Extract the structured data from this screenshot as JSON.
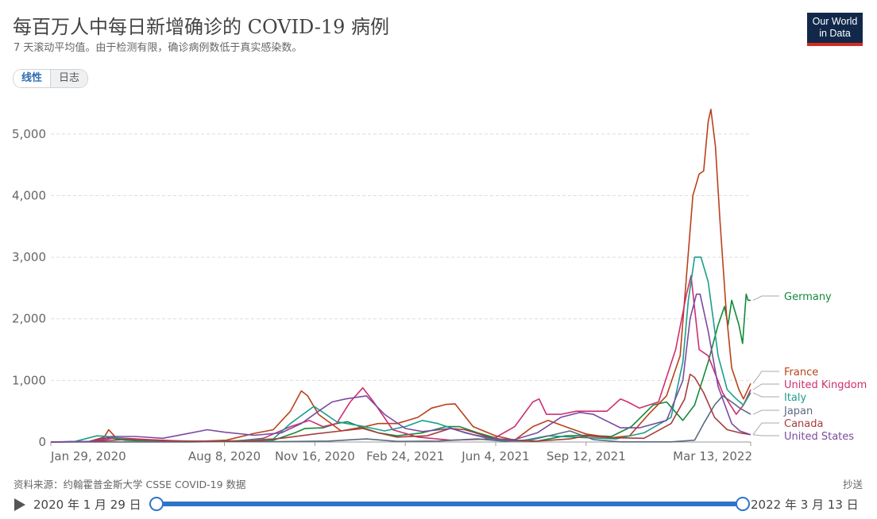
{
  "header": {
    "title": "每百万人中每日新增确诊的 COVID-19 病例",
    "subtitle": "7 天滚动平均值。由于检测有限，确诊病例数低于真实感染数。"
  },
  "logo": {
    "line1": "Our World",
    "line2": "in Data"
  },
  "scale_toggle": {
    "linear_label": "线性",
    "log_label": "日志",
    "active": "linear"
  },
  "footer": {
    "source": "资料来源：约翰霍普金斯大学 CSSE COVID-19 数据",
    "share_label": "抄送"
  },
  "timeline": {
    "start_label": "2020 年 1 月 29 日",
    "end_label": "2022 年 3 月 13 日"
  },
  "chart_data": {
    "type": "line",
    "title": "每百万人中每日新增确诊的 COVID-19 病例",
    "xlabel": "",
    "ylabel": "",
    "x_range": [
      "2020-01-29",
      "2022-03-13"
    ],
    "ylim": [
      0,
      5500
    ],
    "yticks": [
      0,
      1000,
      2000,
      3000,
      4000,
      5000
    ],
    "ytick_labels": [
      "0",
      "1,000",
      "2,000",
      "3,000",
      "4,000",
      "5,000"
    ],
    "xticks": [
      "2020-01-29",
      "2020-08-08",
      "2020-11-16",
      "2021-02-24",
      "2021-06-04",
      "2021-09-12",
      "2022-03-13"
    ],
    "xtick_labels": [
      "Jan 29, 2020",
      "Aug 8, 2020",
      "Nov 16, 2020",
      "Feb 24, 2021",
      "Jun 4, 2021",
      "Sep 12, 2021",
      "Mar 13, 2022"
    ],
    "grid": "horizontal dashed",
    "legend": "right, labels at line ends",
    "series": [
      {
        "name": "Germany",
        "color": "#138a3a",
        "points": [
          [
            "2020-01-29",
            0
          ],
          [
            "2020-03-10",
            5
          ],
          [
            "2020-04-01",
            70
          ],
          [
            "2020-04-20",
            30
          ],
          [
            "2020-06-01",
            5
          ],
          [
            "2020-08-15",
            15
          ],
          [
            "2020-10-01",
            30
          ],
          [
            "2020-10-25",
            150
          ],
          [
            "2020-11-05",
            220
          ],
          [
            "2020-11-25",
            230
          ],
          [
            "2020-12-10",
            300
          ],
          [
            "2020-12-22",
            330
          ],
          [
            "2021-01-05",
            250
          ],
          [
            "2021-01-25",
            150
          ],
          [
            "2021-02-15",
            100
          ],
          [
            "2021-03-15",
            150
          ],
          [
            "2021-04-10",
            250
          ],
          [
            "2021-04-25",
            250
          ],
          [
            "2021-05-15",
            150
          ],
          [
            "2021-06-15",
            20
          ],
          [
            "2021-07-20",
            15
          ],
          [
            "2021-08-20",
            100
          ],
          [
            "2021-09-10",
            110
          ],
          [
            "2021-10-10",
            90
          ],
          [
            "2021-11-01",
            250
          ],
          [
            "2021-11-25",
            600
          ],
          [
            "2021-12-10",
            650
          ],
          [
            "2021-12-28",
            350
          ],
          [
            "2022-01-10",
            600
          ],
          [
            "2022-01-25",
            1300
          ],
          [
            "2022-02-05",
            1900
          ],
          [
            "2022-02-12",
            2200
          ],
          [
            "2022-02-16",
            1900
          ],
          [
            "2022-02-20",
            2300
          ],
          [
            "2022-02-28",
            1900
          ],
          [
            "2022-03-04",
            1600
          ],
          [
            "2022-03-08",
            2400
          ],
          [
            "2022-03-10",
            2300
          ],
          [
            "2022-03-13",
            2300
          ]
        ]
      },
      {
        "name": "France",
        "color": "#b8421a",
        "points": [
          [
            "2020-01-29",
            0
          ],
          [
            "2020-03-10",
            5
          ],
          [
            "2020-03-28",
            80
          ],
          [
            "2020-04-02",
            200
          ],
          [
            "2020-04-10",
            70
          ],
          [
            "2020-05-20",
            10
          ],
          [
            "2020-07-01",
            5
          ],
          [
            "2020-08-10",
            30
          ],
          [
            "2020-09-10",
            140
          ],
          [
            "2020-10-01",
            200
          ],
          [
            "2020-10-20",
            500
          ],
          [
            "2020-11-01",
            830
          ],
          [
            "2020-11-08",
            750
          ],
          [
            "2020-11-20",
            450
          ],
          [
            "2020-12-15",
            180
          ],
          [
            "2021-01-10",
            250
          ],
          [
            "2021-01-25",
            300
          ],
          [
            "2021-02-15",
            300
          ],
          [
            "2021-03-10",
            400
          ],
          [
            "2021-03-25",
            550
          ],
          [
            "2021-04-10",
            610
          ],
          [
            "2021-04-20",
            620
          ],
          [
            "2021-05-10",
            250
          ],
          [
            "2021-06-04",
            100
          ],
          [
            "2021-06-25",
            30
          ],
          [
            "2021-07-15",
            250
          ],
          [
            "2021-08-01",
            350
          ],
          [
            "2021-08-20",
            250
          ],
          [
            "2021-09-12",
            130
          ],
          [
            "2021-10-10",
            70
          ],
          [
            "2021-10-30",
            100
          ],
          [
            "2021-11-20",
            450
          ],
          [
            "2021-12-10",
            750
          ],
          [
            "2021-12-25",
            1400
          ],
          [
            "2022-01-01",
            2700
          ],
          [
            "2022-01-08",
            4000
          ],
          [
            "2022-01-15",
            4350
          ],
          [
            "2022-01-20",
            4400
          ],
          [
            "2022-01-25",
            5200
          ],
          [
            "2022-01-28",
            5400
          ],
          [
            "2022-02-02",
            4800
          ],
          [
            "2022-02-07",
            3600
          ],
          [
            "2022-02-14",
            2100
          ],
          [
            "2022-02-20",
            1200
          ],
          [
            "2022-02-28",
            850
          ],
          [
            "2022-03-05",
            700
          ],
          [
            "2022-03-13",
            950
          ]
        ]
      },
      {
        "name": "United Kingdom",
        "color": "#cf2e6f",
        "points": [
          [
            "2020-01-29",
            0
          ],
          [
            "2020-03-15",
            5
          ],
          [
            "2020-04-10",
            70
          ],
          [
            "2020-05-15",
            40
          ],
          [
            "2020-07-01",
            10
          ],
          [
            "2020-08-20",
            15
          ],
          [
            "2020-09-20",
            60
          ],
          [
            "2020-10-20",
            250
          ],
          [
            "2020-11-10",
            350
          ],
          [
            "2020-11-25",
            250
          ],
          [
            "2020-12-10",
            300
          ],
          [
            "2020-12-25",
            650
          ],
          [
            "2021-01-08",
            880
          ],
          [
            "2021-01-20",
            650
          ],
          [
            "2021-02-10",
            200
          ],
          [
            "2021-03-10",
            80
          ],
          [
            "2021-04-15",
            30
          ],
          [
            "2021-06-01",
            50
          ],
          [
            "2021-06-25",
            250
          ],
          [
            "2021-07-15",
            650
          ],
          [
            "2021-07-22",
            700
          ],
          [
            "2021-07-30",
            450
          ],
          [
            "2021-08-15",
            450
          ],
          [
            "2021-09-01",
            500
          ],
          [
            "2021-09-20",
            500
          ],
          [
            "2021-10-05",
            500
          ],
          [
            "2021-10-20",
            700
          ],
          [
            "2021-10-28",
            650
          ],
          [
            "2021-11-10",
            550
          ],
          [
            "2021-12-01",
            650
          ],
          [
            "2021-12-20",
            1500
          ],
          [
            "2022-01-01",
            2400
          ],
          [
            "2022-01-06",
            2700
          ],
          [
            "2022-01-15",
            1500
          ],
          [
            "2022-01-25",
            1400
          ],
          [
            "2022-02-10",
            800
          ],
          [
            "2022-02-25",
            450
          ],
          [
            "2022-03-05",
            600
          ],
          [
            "2022-03-13",
            850
          ]
        ]
      },
      {
        "name": "Italy",
        "color": "#1b9e8a",
        "points": [
          [
            "2020-01-29",
            0
          ],
          [
            "2020-02-25",
            10
          ],
          [
            "2020-03-20",
            100
          ],
          [
            "2020-04-01",
            90
          ],
          [
            "2020-04-20",
            50
          ],
          [
            "2020-06-01",
            5
          ],
          [
            "2020-08-20",
            20
          ],
          [
            "2020-10-01",
            50
          ],
          [
            "2020-10-20",
            300
          ],
          [
            "2020-11-15",
            580
          ],
          [
            "2020-11-25",
            480
          ],
          [
            "2020-12-10",
            330
          ],
          [
            "2021-01-10",
            250
          ],
          [
            "2021-02-01",
            180
          ],
          [
            "2021-02-24",
            250
          ],
          [
            "2021-03-15",
            350
          ],
          [
            "2021-04-01",
            300
          ],
          [
            "2021-05-01",
            150
          ],
          [
            "2021-06-04",
            30
          ],
          [
            "2021-07-01",
            15
          ],
          [
            "2021-08-01",
            100
          ],
          [
            "2021-09-12",
            70
          ],
          [
            "2021-10-15",
            50
          ],
          [
            "2021-11-15",
            150
          ],
          [
            "2021-12-15",
            400
          ],
          [
            "2021-12-28",
            1300
          ],
          [
            "2022-01-03",
            2300
          ],
          [
            "2022-01-10",
            3000
          ],
          [
            "2022-01-17",
            3000
          ],
          [
            "2022-01-25",
            2600
          ],
          [
            "2022-02-05",
            1400
          ],
          [
            "2022-02-15",
            850
          ],
          [
            "2022-02-25",
            700
          ],
          [
            "2022-03-05",
            600
          ],
          [
            "2022-03-13",
            800
          ]
        ]
      },
      {
        "name": "Japan",
        "color": "#5b6a80",
        "points": [
          [
            "2020-01-29",
            0
          ],
          [
            "2020-07-01",
            1
          ],
          [
            "2020-08-08",
            10
          ],
          [
            "2020-10-01",
            5
          ],
          [
            "2020-12-01",
            15
          ],
          [
            "2021-01-12",
            50
          ],
          [
            "2021-02-15",
            10
          ],
          [
            "2021-04-01",
            15
          ],
          [
            "2021-05-15",
            50
          ],
          [
            "2021-06-15",
            10
          ],
          [
            "2021-07-15",
            40
          ],
          [
            "2021-08-25",
            180
          ],
          [
            "2021-09-20",
            40
          ],
          [
            "2021-10-20",
            2
          ],
          [
            "2021-12-15",
            2
          ],
          [
            "2022-01-10",
            30
          ],
          [
            "2022-01-20",
            300
          ],
          [
            "2022-02-01",
            600
          ],
          [
            "2022-02-10",
            750
          ],
          [
            "2022-02-20",
            650
          ],
          [
            "2022-03-01",
            550
          ],
          [
            "2022-03-13",
            450
          ]
        ]
      },
      {
        "name": "Canada",
        "color": "#a63c3c",
        "points": [
          [
            "2020-01-29",
            0
          ],
          [
            "2020-03-20",
            10
          ],
          [
            "2020-04-25",
            45
          ],
          [
            "2020-06-01",
            20
          ],
          [
            "2020-08-08",
            10
          ],
          [
            "2020-09-15",
            20
          ],
          [
            "2020-10-15",
            70
          ],
          [
            "2020-11-15",
            130
          ],
          [
            "2020-12-15",
            180
          ],
          [
            "2021-01-08",
            220
          ],
          [
            "2021-01-25",
            150
          ],
          [
            "2021-02-15",
            80
          ],
          [
            "2021-03-20",
            100
          ],
          [
            "2021-04-15",
            220
          ],
          [
            "2021-05-01",
            200
          ],
          [
            "2021-06-04",
            50
          ],
          [
            "2021-07-15",
            10
          ],
          [
            "2021-08-25",
            50
          ],
          [
            "2021-09-12",
            100
          ],
          [
            "2021-10-10",
            70
          ],
          [
            "2021-11-15",
            60
          ],
          [
            "2021-12-15",
            300
          ],
          [
            "2021-12-30",
            700
          ],
          [
            "2022-01-05",
            1100
          ],
          [
            "2022-01-10",
            1050
          ],
          [
            "2022-01-20",
            800
          ],
          [
            "2022-02-01",
            400
          ],
          [
            "2022-02-15",
            200
          ],
          [
            "2022-03-01",
            150
          ],
          [
            "2022-03-13",
            120
          ]
        ]
      },
      {
        "name": "United States",
        "color": "#7b4aa0",
        "points": [
          [
            "2020-01-29",
            0
          ],
          [
            "2020-03-15",
            10
          ],
          [
            "2020-04-05",
            90
          ],
          [
            "2020-05-01",
            90
          ],
          [
            "2020-06-01",
            60
          ],
          [
            "2020-07-20",
            200
          ],
          [
            "2020-08-08",
            160
          ],
          [
            "2020-09-10",
            110
          ],
          [
            "2020-10-10",
            150
          ],
          [
            "2020-11-01",
            300
          ],
          [
            "2020-11-20",
            500
          ],
          [
            "2020-12-05",
            650
          ],
          [
            "2020-12-20",
            700
          ],
          [
            "2021-01-12",
            750
          ],
          [
            "2021-02-01",
            450
          ],
          [
            "2021-02-24",
            220
          ],
          [
            "2021-03-15",
            170
          ],
          [
            "2021-04-15",
            220
          ],
          [
            "2021-05-10",
            120
          ],
          [
            "2021-06-04",
            50
          ],
          [
            "2021-06-25",
            40
          ],
          [
            "2021-07-20",
            150
          ],
          [
            "2021-08-15",
            400
          ],
          [
            "2021-09-05",
            480
          ],
          [
            "2021-09-20",
            450
          ],
          [
            "2021-10-20",
            230
          ],
          [
            "2021-11-10",
            230
          ],
          [
            "2021-12-10",
            350
          ],
          [
            "2021-12-28",
            1000
          ],
          [
            "2022-01-05",
            2000
          ],
          [
            "2022-01-12",
            2400
          ],
          [
            "2022-01-16",
            2400
          ],
          [
            "2022-01-25",
            1800
          ],
          [
            "2022-02-05",
            900
          ],
          [
            "2022-02-20",
            300
          ],
          [
            "2022-03-01",
            180
          ],
          [
            "2022-03-13",
            120
          ]
        ]
      }
    ]
  }
}
